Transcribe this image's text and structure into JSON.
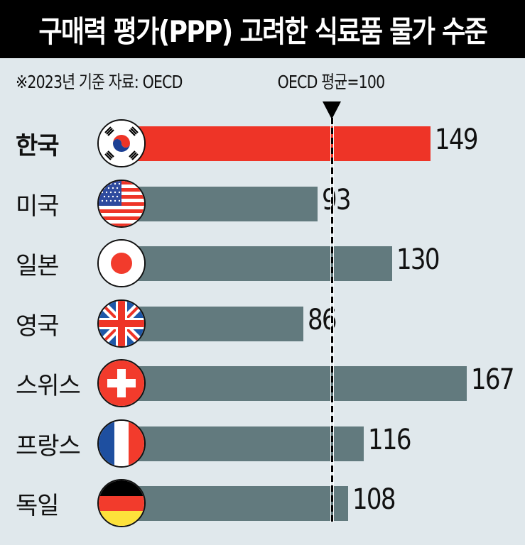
{
  "header": {
    "title": "구매력 평가(PPP) 고려한 식료품 물가 수준"
  },
  "note": "※2023년 기준 자료: OECD",
  "reference": {
    "label": "OECD 평균=100",
    "value": 100
  },
  "colors": {
    "background": "#e0e8ec",
    "bar": "#627a7e",
    "highlight": "#ee3427",
    "header": "#000000"
  },
  "rows": [
    {
      "label": "한국",
      "value": "149",
      "flag": "korea-flag-icon"
    },
    {
      "label": "미국",
      "value": "93",
      "flag": "usa-flag-icon"
    },
    {
      "label": "일본",
      "value": "130",
      "flag": "japan-flag-icon"
    },
    {
      "label": "영국",
      "value": "86",
      "flag": "uk-flag-icon"
    },
    {
      "label": "스위스",
      "value": "167",
      "flag": "switzerland-flag-icon"
    },
    {
      "label": "프랑스",
      "value": "116",
      "flag": "france-flag-icon"
    },
    {
      "label": "독일",
      "value": "108",
      "flag": "germany-flag-icon"
    }
  ],
  "chart_data": {
    "type": "bar",
    "orientation": "horizontal",
    "title": "구매력 평가(PPP) 고려한 식료품 물가 수준",
    "subtitle": "※2023년 기준 자료: OECD",
    "categories": [
      "한국",
      "미국",
      "일본",
      "영국",
      "스위스",
      "프랑스",
      "독일"
    ],
    "values": [
      149,
      93,
      130,
      86,
      167,
      116,
      108
    ],
    "highlight": "한국",
    "annotations": [
      {
        "type": "reference_line",
        "value": 100,
        "label": "OECD 평균=100",
        "style": "dashed"
      }
    ],
    "xlabel": "",
    "ylabel": "",
    "grid": false
  }
}
